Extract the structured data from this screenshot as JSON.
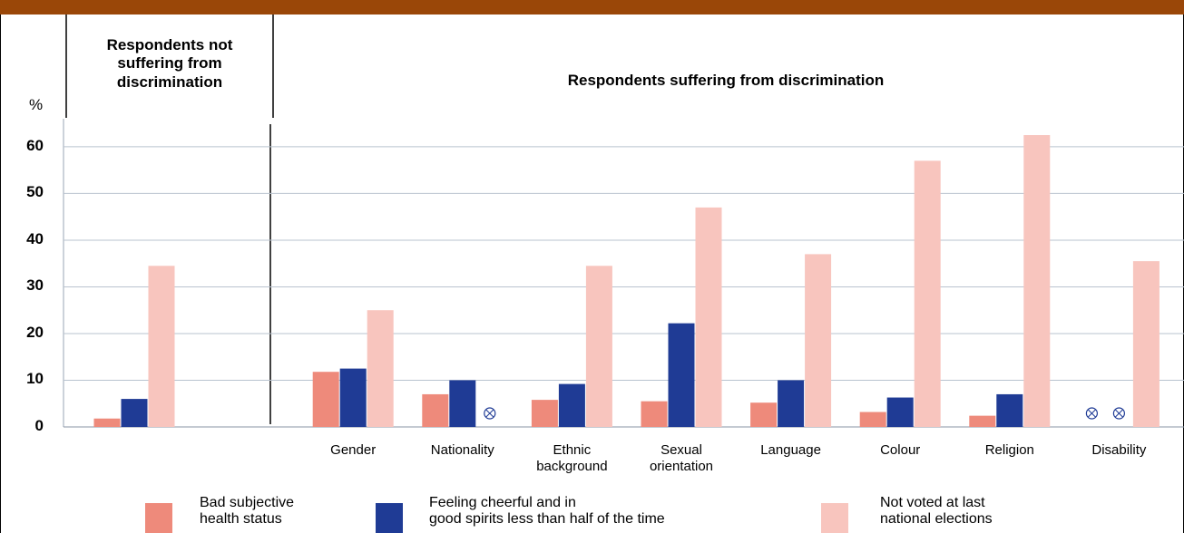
{
  "chart_data": {
    "type": "bar",
    "y_label": "%",
    "annotations": [
      "Respondents not\nsuffering from\ndiscrimination",
      "Respondents suffering from discrimination"
    ],
    "categories": [
      null,
      "Gender",
      "Nationality",
      "Ethnic\nbackground",
      "Sexual\norientation",
      "Language",
      "Colour",
      "Religion",
      "Disability"
    ],
    "series": [
      {
        "name": "Bad subjective\nhealth status",
        "color": "#ee8a7b",
        "values": [
          1.8,
          11.8,
          7,
          5.8,
          5.5,
          5.2,
          3.2,
          2.4,
          null
        ]
      },
      {
        "name": "Feeling cheerful and in\ngood spirits less than half of the time",
        "color": "#1f3b95",
        "values": [
          6,
          12.5,
          10,
          9.2,
          22.2,
          10,
          6.3,
          7,
          null
        ]
      },
      {
        "name": "Not voted at last\nnational elections",
        "color": "#f8c5be",
        "values": [
          34.5,
          25,
          null,
          34.5,
          47,
          37,
          57,
          62.5,
          35.5
        ]
      }
    ],
    "ylim": [
      0,
      66
    ],
    "yticks": [
      0,
      10,
      20,
      30,
      40,
      50,
      60
    ],
    "grid": true
  }
}
